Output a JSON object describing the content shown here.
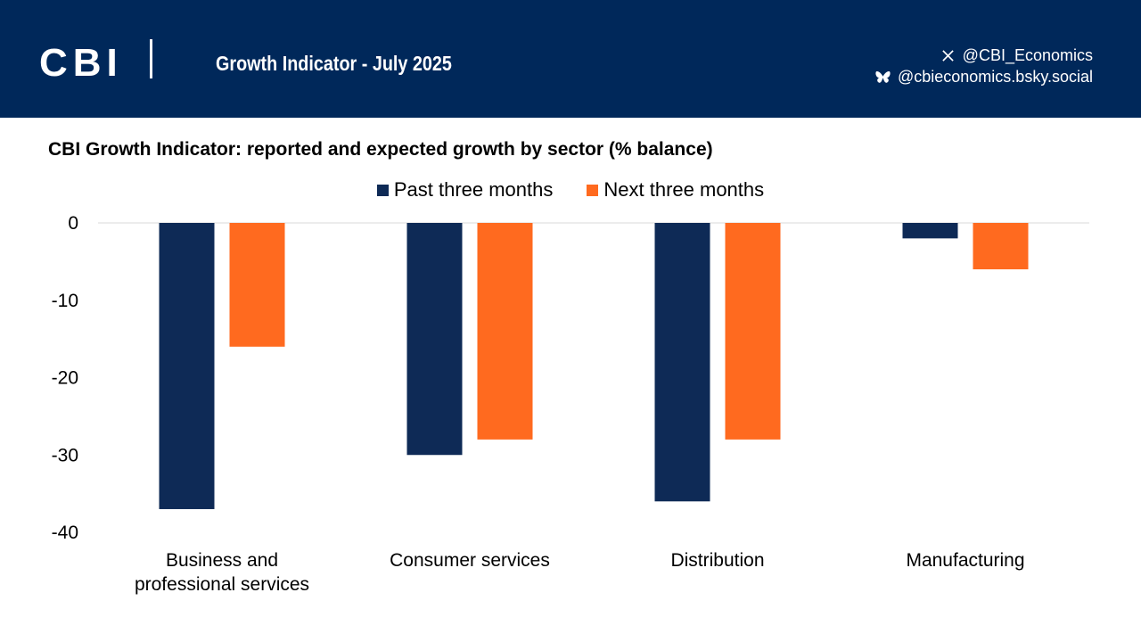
{
  "header": {
    "logo_text": "CBI",
    "title": "Growth Indicator - July 2025",
    "social": [
      {
        "icon": "x-icon",
        "handle": "@CBI_Economics"
      },
      {
        "icon": "bluesky-butterfly-icon",
        "handle": "@cbieconomics.bsky.social"
      }
    ]
  },
  "colors": {
    "header_bg": "#00285a",
    "past": "#0e2a56",
    "next": "#ff6a1f"
  },
  "chart_data": {
    "type": "bar",
    "title": "CBI Growth Indicator: reported and expected growth by sector (% balance)",
    "categories": [
      "Business and professional services",
      "Consumer services",
      "Distribution",
      "Manufacturing"
    ],
    "category_lines": [
      [
        "Business and",
        "professional services"
      ],
      [
        "Consumer services"
      ],
      [
        "Distribution"
      ],
      [
        "Manufacturing"
      ]
    ],
    "series": [
      {
        "name": "Past three months",
        "values": [
          -37,
          -30,
          -36,
          -2
        ]
      },
      {
        "name": "Next three months",
        "values": [
          -16,
          -28,
          -28,
          -6
        ]
      }
    ],
    "ylim": [
      -40,
      0
    ],
    "yticks": [
      0,
      -10,
      -20,
      -30,
      -40
    ],
    "xlabel": "",
    "ylabel": "",
    "legend_position": "top-center",
    "grid": false
  }
}
